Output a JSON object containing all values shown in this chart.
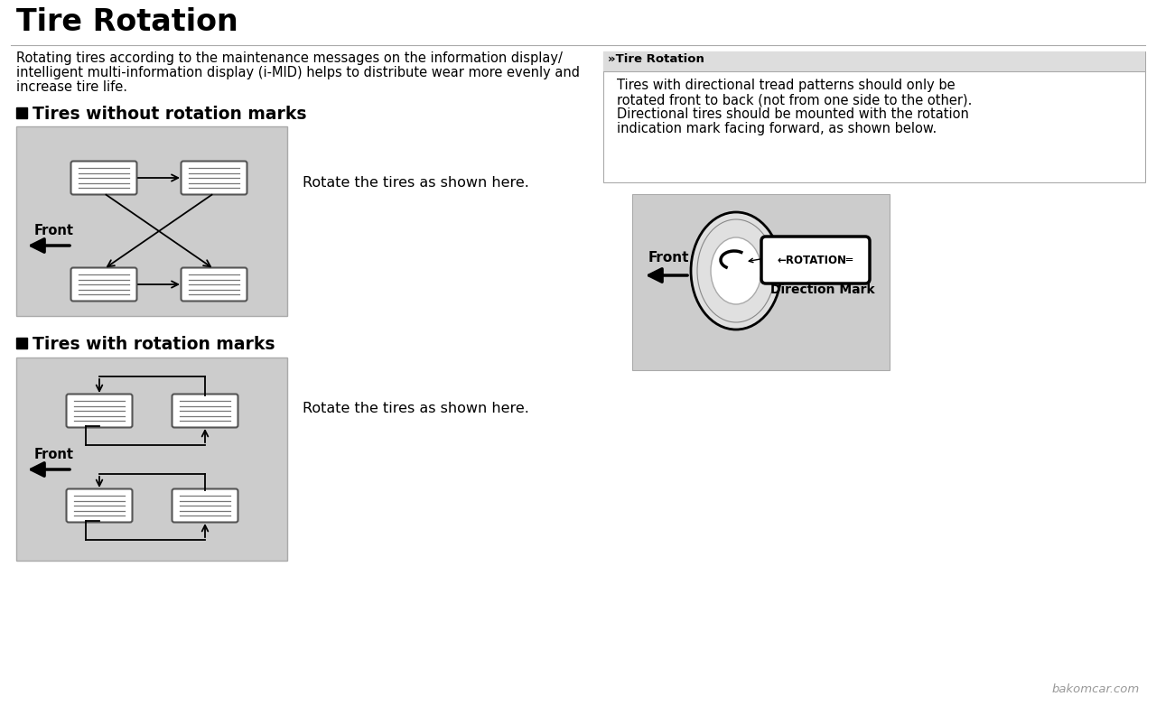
{
  "title": "Tire Rotation",
  "bg_color": "#f2f2f2",
  "white": "#ffffff",
  "black": "#000000",
  "gray_box": "#cccccc",
  "light_gray": "#e8e8e8",
  "intro_line1": "Rotating tires according to the maintenance messages on the information display/",
  "intro_line2": "intelligent multi-information display (i-MID) helps to distribute wear more evenly and",
  "intro_line3": "increase tire life.",
  "sec1_title": "Tires without rotation marks",
  "sec1_caption": "Rotate the tires as shown here.",
  "sec2_title": "Tires with rotation marks",
  "sec2_caption": "Rotate the tires as shown here.",
  "note_header": "Tire Rotation",
  "note_body_line1": "Tires with directional tread patterns should only be",
  "note_body_line2": "rotated front to back (not from one side to the other).",
  "note_body_line3": "Directional tires should be mounted with the rotation",
  "note_body_line4": "indication mark facing forward, as shown below.",
  "rotation_text": "←ROTATION═",
  "dir_mark": "Direction Mark",
  "front_label": "Front",
  "watermark": "bakomcar.com"
}
